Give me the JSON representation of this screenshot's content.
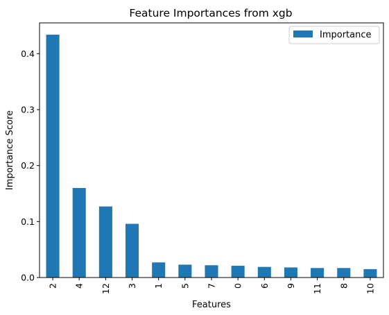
{
  "chart_data": {
    "type": "bar",
    "title": "Feature Importances from xgb",
    "xlabel": "Features",
    "ylabel": "Importance Score",
    "categories": [
      "2",
      "4",
      "12",
      "3",
      "1",
      "5",
      "7",
      "0",
      "6",
      "9",
      "11",
      "8",
      "10"
    ],
    "series": [
      {
        "name": "Importance",
        "values": [
          0.434,
          0.16,
          0.127,
          0.096,
          0.027,
          0.023,
          0.022,
          0.021,
          0.019,
          0.018,
          0.017,
          0.017,
          0.015
        ],
        "color": "#1f77b4"
      }
    ],
    "ylim": [
      0,
      0.455
    ],
    "yticks": [
      0.0,
      0.1,
      0.2,
      0.3,
      0.4
    ],
    "ytick_labels": [
      "0.0",
      "0.1",
      "0.2",
      "0.3",
      "0.4"
    ],
    "xtick_rotation": "vertical",
    "grid": false,
    "legend": "top-right"
  }
}
